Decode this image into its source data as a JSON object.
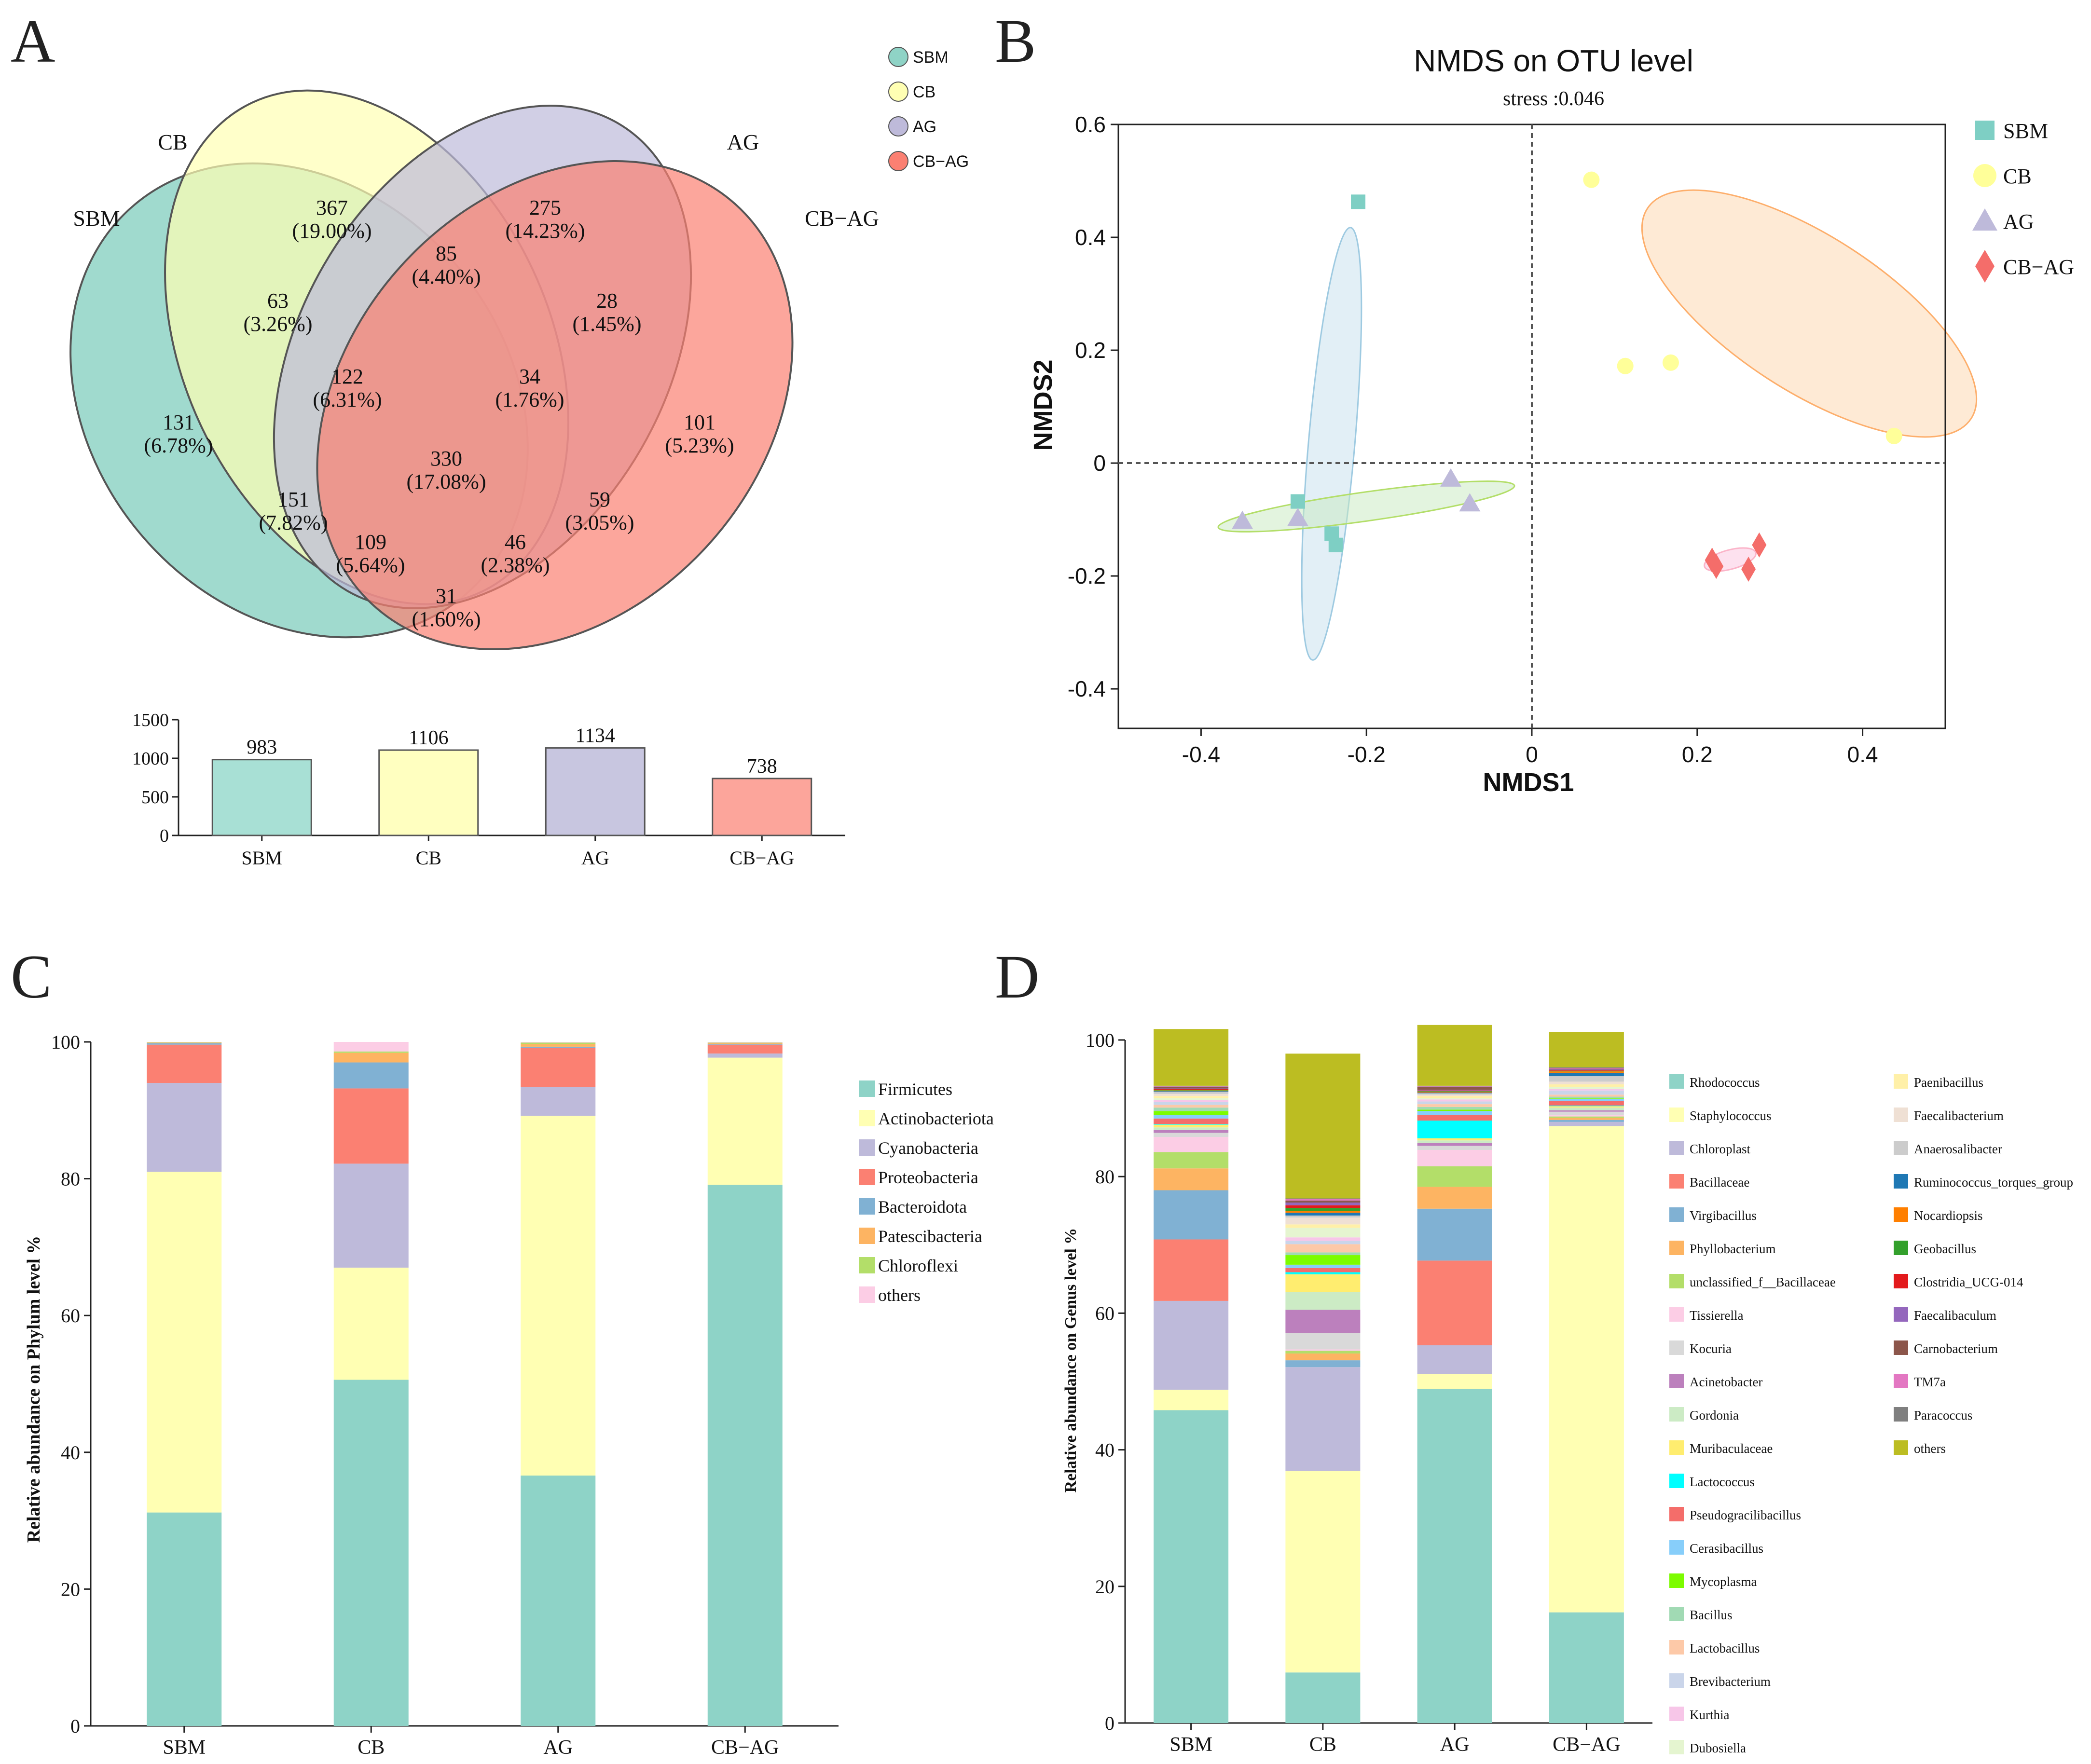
{
  "panels": {
    "a": "A",
    "b": "B",
    "c": "C",
    "d": "D"
  },
  "chart_data": [
    {
      "type": "venn",
      "panel": "A",
      "legend": [
        {
          "name": "SBM",
          "color": "#8fd3c6"
        },
        {
          "name": "CB",
          "color": "#ffffb3"
        },
        {
          "name": "AG",
          "color": "#bebada"
        },
        {
          "name": "CB−AG",
          "color": "#fb8072"
        }
      ],
      "set_labels": [
        "SBM",
        "CB",
        "AG",
        "CB−AG"
      ],
      "regions": [
        {
          "value": "367",
          "pct": "(19.00%)"
        },
        {
          "value": "275",
          "pct": "(14.23%)"
        },
        {
          "value": "85",
          "pct": "(4.40%)"
        },
        {
          "value": "63",
          "pct": "(3.26%)"
        },
        {
          "value": "28",
          "pct": "(1.45%)"
        },
        {
          "value": "122",
          "pct": "(6.31%)"
        },
        {
          "value": "34",
          "pct": "(1.76%)"
        },
        {
          "value": "131",
          "pct": "(6.78%)"
        },
        {
          "value": "330",
          "pct": "(17.08%)"
        },
        {
          "value": "101",
          "pct": "(5.23%)"
        },
        {
          "value": "151",
          "pct": "(7.82%)"
        },
        {
          "value": "59",
          "pct": "(3.05%)"
        },
        {
          "value": "109",
          "pct": "(5.64%)"
        },
        {
          "value": "46",
          "pct": "(2.38%)"
        },
        {
          "value": "31",
          "pct": "(1.60%)"
        }
      ]
    },
    {
      "type": "bar",
      "panel": "A-inset",
      "categories": [
        "SBM",
        "CB",
        "AG",
        "CB−AG"
      ],
      "values": [
        983,
        1106,
        1134,
        738
      ],
      "value_labels": [
        "983",
        "1106",
        "1134",
        "738"
      ],
      "colors": [
        "#a8e0d5",
        "#ffffc0",
        "#c8c6e0",
        "#fca59b"
      ],
      "ylim": [
        0,
        1500
      ],
      "yticks": [
        "0",
        "500",
        "1000",
        "1500"
      ]
    },
    {
      "type": "scatter",
      "panel": "B",
      "title": "NMDS on OTU level",
      "subtitle": "stress :0.046",
      "xlabel": "NMDS1",
      "ylabel": "NMDS2",
      "xlim": [
        -0.5,
        0.5
      ],
      "ylim": [
        -0.47,
        0.6
      ],
      "xticks": [
        "-0.4",
        "-0.2",
        "0",
        "0.2",
        "0.4"
      ],
      "yticks": [
        "-0.4",
        "-0.2",
        "0",
        "0.2",
        "0.4",
        "0.6"
      ],
      "series": [
        {
          "name": "SBM",
          "color": "#7ecfc4",
          "points": [
            [
              -0.21,
              0.463
            ],
            [
              -0.283,
              -0.068
            ],
            [
              -0.242,
              -0.125
            ],
            [
              -0.237,
              -0.145
            ]
          ]
        },
        {
          "name": "CB",
          "color": "#ffff99",
          "points": [
            [
              0.072,
              0.502
            ],
            [
              0.113,
              0.172
            ],
            [
              0.168,
              0.178
            ],
            [
              0.438,
              0.048
            ]
          ]
        },
        {
          "name": "AG",
          "color": "#bebada",
          "points": [
            [
              -0.35,
              -0.103
            ],
            [
              -0.283,
              -0.098
            ],
            [
              -0.098,
              -0.028
            ],
            [
              -0.075,
              -0.072
            ]
          ]
        },
        {
          "name": "CB−AG",
          "color": "#f46d6a",
          "points": [
            [
              0.218,
              -0.172
            ],
            [
              0.223,
              -0.183
            ],
            [
              0.262,
              -0.188
            ],
            [
              0.275,
              -0.145
            ]
          ]
        }
      ]
    },
    {
      "type": "stacked-bar",
      "panel": "C",
      "ylabel": "Relative abundance on Phylum level %",
      "ylim": [
        0,
        100
      ],
      "yticks": [
        "0",
        "20",
        "40",
        "60",
        "80",
        "100"
      ],
      "categories": [
        "SBM",
        "CB",
        "AG",
        "CB−AG"
      ],
      "series": [
        {
          "name": "Firmicutes",
          "color": "#8ed3c7",
          "values": [
            31.2,
            50.6,
            36.6,
            79.1
          ]
        },
        {
          "name": "Actinobacteriota",
          "color": "#ffffb3",
          "values": [
            49.8,
            16.4,
            52.6,
            18.6
          ]
        },
        {
          "name": "Cyanobacteria",
          "color": "#bebada",
          "values": [
            13.0,
            15.2,
            4.2,
            0.6
          ]
        },
        {
          "name": "Proteobacteria",
          "color": "#fb8072",
          "values": [
            5.6,
            11.0,
            5.7,
            1.3
          ]
        },
        {
          "name": "Bacteroidota",
          "color": "#80b1d3",
          "values": [
            0.2,
            3.8,
            0.2,
            0.1
          ]
        },
        {
          "name": "Patescibacteria",
          "color": "#fdb462",
          "values": [
            0.1,
            1.4,
            0.4,
            0.1
          ]
        },
        {
          "name": "Chloroflexi",
          "color": "#b3de69",
          "values": [
            0.05,
            0.2,
            0.2,
            0.1
          ]
        },
        {
          "name": "others",
          "color": "#fccde5",
          "values": [
            0.05,
            1.4,
            0.1,
            0.1
          ]
        }
      ]
    },
    {
      "type": "stacked-bar",
      "panel": "D",
      "ylabel": "Relative abundance on Genus level %",
      "ylim": [
        0,
        100
      ],
      "yticks": [
        "0",
        "20",
        "40",
        "60",
        "80",
        "100"
      ],
      "categories": [
        "SBM",
        "CB",
        "AG",
        "CB−AG"
      ],
      "series": [
        {
          "name": "Rhodococcus",
          "color": "#8ed3c7",
          "values": [
            45.8,
            7.4,
            48.9,
            16.2
          ]
        },
        {
          "name": "Staphylococcus",
          "color": "#ffffb3",
          "values": [
            3.0,
            29.5,
            2.2,
            71.2
          ]
        },
        {
          "name": "Chloroplast",
          "color": "#bebada",
          "values": [
            13.0,
            15.2,
            4.2,
            0.6
          ]
        },
        {
          "name": "Bacillaceae",
          "color": "#fb8072",
          "values": [
            9.0,
            0.0,
            12.4,
            0.0
          ]
        },
        {
          "name": "Virgibacillus",
          "color": "#80b1d3",
          "values": [
            7.2,
            1.0,
            7.6,
            0.3
          ]
        },
        {
          "name": "Phyllobacterium",
          "color": "#fdb462",
          "values": [
            3.2,
            1.0,
            3.2,
            0.3
          ]
        },
        {
          "name": "unclassified_f__Bacillaceae",
          "color": "#b3de69",
          "values": [
            2.4,
            0.4,
            3.0,
            0.2
          ]
        },
        {
          "name": "Tissierella",
          "color": "#fccde5",
          "values": [
            2.2,
            0.2,
            2.4,
            0.2
          ]
        },
        {
          "name": "Kocuria",
          "color": "#d9d9d9",
          "values": [
            0.6,
            2.4,
            0.6,
            0.5
          ]
        },
        {
          "name": "Acinetobacter",
          "color": "#bc80bd",
          "values": [
            0.4,
            3.4,
            0.4,
            0.2
          ]
        },
        {
          "name": "Gordonia",
          "color": "#ccebc5",
          "values": [
            0.4,
            2.6,
            0.4,
            0.4
          ]
        },
        {
          "name": "Muribaculaceae",
          "color": "#ffed6f",
          "values": [
            0.4,
            2.6,
            0.3,
            0.2
          ]
        },
        {
          "name": "Lactococcus",
          "color": "#00ffff",
          "values": [
            0.1,
            0.3,
            2.6,
            0.1
          ]
        },
        {
          "name": "Pseudogracilibacillus",
          "color": "#f46d6a",
          "values": [
            0.8,
            0.6,
            0.8,
            0.7
          ]
        },
        {
          "name": "Cerasibacillus",
          "color": "#87cefa",
          "values": [
            0.5,
            0.5,
            0.6,
            0.3
          ]
        },
        {
          "name": "Mycoplasma",
          "color": "#7cfc00",
          "values": [
            0.6,
            1.4,
            0.2,
            0.1
          ]
        },
        {
          "name": "Bacillus",
          "color": "#a1dab4",
          "values": [
            0.5,
            0.4,
            0.4,
            0.2
          ]
        },
        {
          "name": "Lactobacillus",
          "color": "#fdc9a8",
          "values": [
            0.4,
            1.2,
            0.4,
            0.3
          ]
        },
        {
          "name": "Brevibacterium",
          "color": "#cad5ea",
          "values": [
            0.4,
            0.5,
            0.4,
            0.6
          ]
        },
        {
          "name": "Kurthia",
          "color": "#f7c6e8",
          "values": [
            0.3,
            0.5,
            0.3,
            0.2
          ]
        },
        {
          "name": "Dubosiella",
          "color": "#e5f5d0",
          "values": [
            0.3,
            1.4,
            0.2,
            0.3
          ]
        },
        {
          "name": "Paenibacillus",
          "color": "#fff0a8",
          "values": [
            0.3,
            0.5,
            0.3,
            0.4
          ]
        },
        {
          "name": "Faecalibacterium",
          "color": "#efe0d4",
          "values": [
            0.3,
            1.0,
            0.2,
            0.4
          ]
        },
        {
          "name": "Anaerosalibacter",
          "color": "#cccccc",
          "values": [
            0.3,
            0.3,
            0.2,
            0.8
          ]
        },
        {
          "name": "Ruminococcus_torques_group",
          "color": "#1f78b4",
          "values": [
            0.1,
            0.4,
            0.1,
            0.5
          ]
        },
        {
          "name": "Nocardiopsis",
          "color": "#ff7f00",
          "values": [
            0.1,
            0.3,
            0.1,
            0.2
          ]
        },
        {
          "name": "Geobacillus",
          "color": "#33a02c",
          "values": [
            0.1,
            0.4,
            0.1,
            0.1
          ]
        },
        {
          "name": "Clostridia_UCG-014",
          "color": "#e31a1c",
          "values": [
            0.1,
            0.4,
            0.1,
            0.1
          ]
        },
        {
          "name": "Faecalibaculum",
          "color": "#9467bd",
          "values": [
            0.1,
            0.4,
            0.1,
            0.1
          ]
        },
        {
          "name": "Carnobacterium",
          "color": "#8c564b",
          "values": [
            0.2,
            0.3,
            0.4,
            0.1
          ]
        },
        {
          "name": "TM7a",
          "color": "#e377c2",
          "values": [
            0.1,
            0.2,
            0.1,
            0.1
          ]
        },
        {
          "name": "Paracoccus",
          "color": "#7f7f7f",
          "values": [
            0.1,
            0.1,
            0.1,
            0.1
          ]
        },
        {
          "name": "others",
          "color": "#bcbd22",
          "values": [
            8.3,
            21.2,
            8.9,
            5.2
          ]
        }
      ]
    }
  ]
}
